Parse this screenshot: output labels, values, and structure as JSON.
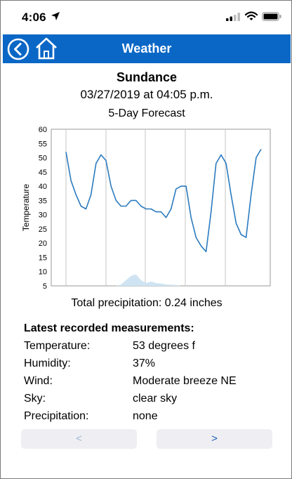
{
  "status_bar": {
    "time": "4:06",
    "location_icon": "location-arrow-icon",
    "signal_icon": "cellular-signal-icon",
    "wifi_icon": "wifi-icon",
    "battery_icon": "battery-icon"
  },
  "nav": {
    "title": "Weather",
    "back_icon": "back-circle-icon",
    "home_icon": "home-icon",
    "bar_color": "#0a67c6"
  },
  "location": {
    "name": "Sundance",
    "datetime": "03/27/2019 at 04:05 p.m."
  },
  "chart_data": {
    "type": "line",
    "title": "5-Day Forecast",
    "ylabel": "Temperature",
    "xlabel": "",
    "ylim": [
      5,
      60
    ],
    "yticks": [
      5,
      10,
      15,
      20,
      25,
      30,
      35,
      40,
      45,
      50,
      55,
      60
    ],
    "grid": "vertical-lines",
    "series": [
      {
        "kind": "line",
        "color": "#2b7bbf",
        "values": [
          52,
          42,
          37,
          33,
          32,
          37,
          48,
          51,
          49,
          40,
          35,
          33,
          33,
          35,
          35,
          33,
          32,
          32,
          31,
          31,
          29,
          32,
          39,
          40,
          40,
          29,
          22,
          19,
          17,
          31,
          48,
          51,
          48,
          37,
          27,
          23,
          22,
          37,
          50,
          53
        ]
      },
      {
        "kind": "area",
        "color": "#cfe4f3",
        "values": [
          0,
          0,
          0,
          0,
          0,
          0,
          0,
          0,
          0,
          0,
          0,
          0.5,
          2,
          3.5,
          4,
          2,
          1,
          1.5,
          1,
          0.8,
          0.5,
          0.4,
          0.3,
          0,
          0,
          0,
          0,
          0,
          0,
          0,
          0,
          0,
          0,
          0,
          0,
          0,
          0,
          0,
          0,
          0
        ]
      }
    ]
  },
  "precipitation_total": "Total precipitation: 0.24 inches",
  "measurements": {
    "heading": "Latest recorded measurements:",
    "rows": [
      {
        "label": "Temperature:",
        "value": "53 degrees f"
      },
      {
        "label": "Humidity:",
        "value": "37%"
      },
      {
        "label": "Wind:",
        "value": "Moderate breeze NE"
      },
      {
        "label": "Sky:",
        "value": "clear sky"
      },
      {
        "label": "Precipitation:",
        "value": "none"
      }
    ]
  },
  "pager": {
    "prev_label": "<",
    "next_label": ">"
  }
}
